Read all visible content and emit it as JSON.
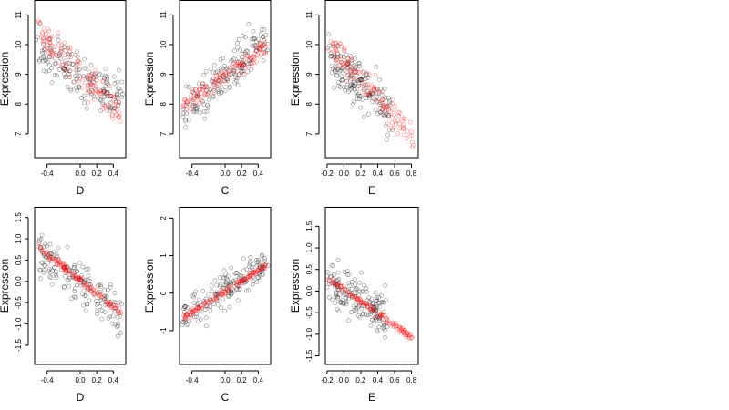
{
  "chart_data": [
    {
      "type": "scatter",
      "xlabel": "D",
      "ylabel": "Expression",
      "xlim": [
        -0.55,
        0.55
      ],
      "ylim": [
        6.2,
        11.5
      ],
      "xticks": [
        -0.4,
        0.0,
        0.2,
        0.4
      ],
      "xtick_labels": [
        "-0.4",
        "0.0",
        "0.2",
        "0.4"
      ],
      "yticks": [
        7,
        8,
        9,
        10,
        11
      ],
      "ytick_labels": [
        "7",
        "8",
        "9",
        "10",
        "11"
      ],
      "colors": {
        "black": "#000000",
        "red": "#ff0000"
      },
      "series": [
        {
          "color": "black",
          "trend": {
            "x0": -0.5,
            "y0": 9.8,
            "x1": 0.5,
            "y1": 8.1
          },
          "spread": 0.8,
          "n": 170
        },
        {
          "color": "red",
          "trend": {
            "x0": -0.5,
            "y0": 10.4,
            "x1": 0.5,
            "y1": 7.6
          },
          "spread": 0.55,
          "n": 140
        }
      ]
    },
    {
      "type": "scatter",
      "xlabel": "C",
      "ylabel": "Expression",
      "xlim": [
        -0.55,
        0.55
      ],
      "ylim": [
        6.2,
        11.5
      ],
      "xticks": [
        -0.4,
        0.0,
        0.2,
        0.4
      ],
      "xtick_labels": [
        "-0.4",
        "0.0",
        "0.2",
        "0.4"
      ],
      "yticks": [
        7,
        8,
        9,
        10,
        11
      ],
      "ytick_labels": [
        "7",
        "8",
        "9",
        "10",
        "11"
      ],
      "colors": {
        "black": "#000000",
        "red": "#ff0000"
      },
      "series": [
        {
          "color": "black",
          "trend": {
            "x0": -0.5,
            "y0": 7.6,
            "x1": 0.5,
            "y1": 10.3
          },
          "spread": 0.75,
          "n": 170
        },
        {
          "color": "red",
          "trend": {
            "x0": -0.5,
            "y0": 7.9,
            "x1": 0.5,
            "y1": 10.0
          },
          "spread": 0.35,
          "n": 140
        }
      ]
    },
    {
      "type": "scatter",
      "xlabel": "E",
      "ylabel": "Expression",
      "xlim": [
        -0.22,
        0.88
      ],
      "ylim": [
        6.2,
        11.5
      ],
      "xticks": [
        -0.2,
        0.0,
        0.2,
        0.4,
        0.6,
        0.8
      ],
      "xtick_labels": [
        "-0.2",
        "0.0",
        "0.2",
        "0.4",
        "0.6",
        "0.8"
      ],
      "yticks": [
        7,
        8,
        9,
        10,
        11
      ],
      "ytick_labels": [
        "7",
        "8",
        "9",
        "10",
        "11"
      ],
      "colors": {
        "black": "#000000",
        "red": "#ff0000"
      },
      "series": [
        {
          "color": "black",
          "trend": {
            "x0": -0.18,
            "y0": 9.6,
            "x1": 0.55,
            "y1": 7.7
          },
          "spread": 0.75,
          "n": 170
        },
        {
          "color": "red",
          "trend": {
            "x0": -0.18,
            "y0": 10.0,
            "x1": 0.82,
            "y1": 6.9
          },
          "spread": 0.5,
          "n": 140
        }
      ]
    },
    {
      "type": "scatter",
      "xlabel": "D",
      "ylabel": "Expression",
      "xlim": [
        -0.55,
        0.55
      ],
      "ylim": [
        -1.95,
        1.75
      ],
      "xticks": [
        -0.4,
        0.0,
        0.2,
        0.4
      ],
      "xtick_labels": [
        "-0.4",
        "0.0",
        "0.2",
        "0.4"
      ],
      "yticks": [
        -1.5,
        -1.0,
        -0.5,
        0.0,
        0.5,
        1.0,
        1.5
      ],
      "ytick_labels": [
        "-1.5",
        "-1.0",
        "-0.5",
        "0.0",
        "0.5",
        "1.0",
        "1.5"
      ],
      "colors": {
        "black": "#000000",
        "red": "#ff0000"
      },
      "series": [
        {
          "color": "black",
          "trend": {
            "x0": -0.5,
            "y0": 0.7,
            "x1": 0.5,
            "y1": -0.8
          },
          "spread": 0.55,
          "n": 170
        },
        {
          "color": "red",
          "trend": {
            "x0": -0.5,
            "y0": 0.8,
            "x1": 0.5,
            "y1": -0.75
          },
          "spread": 0.08,
          "n": 140
        }
      ]
    },
    {
      "type": "scatter",
      "xlabel": "C",
      "ylabel": "Expression",
      "xlim": [
        -0.55,
        0.55
      ],
      "ylim": [
        -1.9,
        2.3
      ],
      "xticks": [
        -0.4,
        0.0,
        0.2,
        0.4
      ],
      "xtick_labels": [
        "-0.4",
        "0.0",
        "0.2",
        "0.4"
      ],
      "yticks": [
        -1,
        0,
        1,
        2
      ],
      "ytick_labels": [
        "-1",
        "0",
        "1",
        "2"
      ],
      "colors": {
        "black": "#000000",
        "red": "#ff0000"
      },
      "series": [
        {
          "color": "black",
          "trend": {
            "x0": -0.5,
            "y0": -0.6,
            "x1": 0.5,
            "y1": 0.8
          },
          "spread": 0.5,
          "n": 170
        },
        {
          "color": "red",
          "trend": {
            "x0": -0.5,
            "y0": -0.65,
            "x1": 0.5,
            "y1": 0.75
          },
          "spread": 0.08,
          "n": 140
        }
      ]
    },
    {
      "type": "scatter",
      "xlabel": "E",
      "ylabel": "Expression",
      "xlim": [
        -0.22,
        0.88
      ],
      "ylim": [
        -1.7,
        1.95
      ],
      "xticks": [
        -0.2,
        0.0,
        0.2,
        0.4,
        0.6,
        0.8
      ],
      "xtick_labels": [
        "-0.2",
        "0.0",
        "0.2",
        "0.4",
        "0.6",
        "0.8"
      ],
      "yticks": [
        -1.5,
        -1.0,
        -0.5,
        0.0,
        0.5,
        1.0,
        1.5
      ],
      "ytick_labels": [
        "-1.5",
        "-1.0",
        "-0.5",
        "0.0",
        "0.5",
        "1.0",
        "1.5"
      ],
      "colors": {
        "black": "#000000",
        "red": "#ff0000"
      },
      "series": [
        {
          "color": "black",
          "trend": {
            "x0": -0.18,
            "y0": 0.3,
            "x1": 0.5,
            "y1": -0.6
          },
          "spread": 0.55,
          "n": 170
        },
        {
          "color": "red",
          "trend": {
            "x0": -0.18,
            "y0": 0.3,
            "x1": 0.82,
            "y1": -1.1
          },
          "spread": 0.07,
          "n": 140
        }
      ]
    }
  ]
}
